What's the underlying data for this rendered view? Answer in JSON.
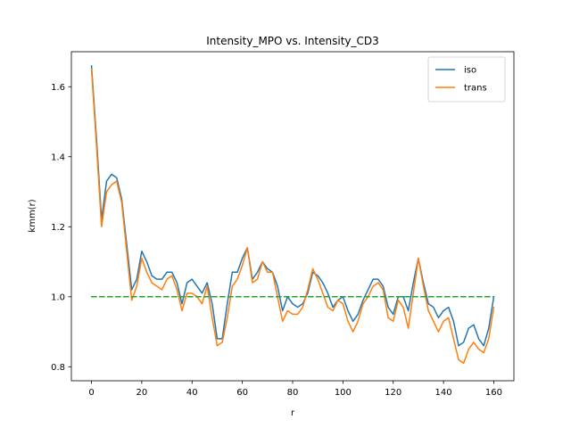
{
  "chart_data": {
    "type": "line",
    "title": "Intensity_MPO vs. Intensity_CD3",
    "xlabel": "r",
    "ylabel": "kmm(r)",
    "xlim": [
      -8,
      168
    ],
    "ylim": [
      0.76,
      1.7
    ],
    "xticks": [
      0,
      20,
      40,
      60,
      80,
      100,
      120,
      140,
      160
    ],
    "yticks": [
      0.8,
      1.0,
      1.2,
      1.4,
      1.6
    ],
    "ytick_labels": [
      "0.8",
      "1.0",
      "1.2",
      "1.4",
      "1.6"
    ],
    "grid": false,
    "legend": "top-right",
    "series": [
      {
        "name": "iso",
        "color": "#1f77b4",
        "style": "solid",
        "x": [
          0,
          2,
          4,
          6,
          8,
          10,
          12,
          14,
          16,
          18,
          20,
          22,
          24,
          26,
          28,
          30,
          32,
          34,
          36,
          38,
          40,
          42,
          44,
          46,
          48,
          50,
          52,
          54,
          56,
          58,
          60,
          62,
          64,
          66,
          68,
          70,
          72,
          74,
          76,
          78,
          80,
          82,
          84,
          86,
          88,
          90,
          92,
          94,
          96,
          98,
          100,
          102,
          104,
          106,
          108,
          110,
          112,
          114,
          116,
          118,
          120,
          122,
          124,
          126,
          128,
          130,
          132,
          134,
          136,
          138,
          140,
          142,
          144,
          146,
          148,
          150,
          152,
          154,
          156,
          158,
          160
        ],
        "y": [
          1.66,
          1.45,
          1.22,
          1.33,
          1.35,
          1.34,
          1.28,
          1.15,
          1.02,
          1.05,
          1.13,
          1.1,
          1.06,
          1.05,
          1.05,
          1.07,
          1.07,
          1.04,
          0.98,
          1.04,
          1.05,
          1.03,
          1.01,
          1.04,
          0.98,
          0.88,
          0.88,
          0.98,
          1.07,
          1.07,
          1.11,
          1.14,
          1.05,
          1.07,
          1.1,
          1.08,
          1.07,
          1.03,
          0.96,
          1.0,
          0.98,
          0.97,
          0.98,
          1.01,
          1.07,
          1.06,
          1.04,
          1.01,
          0.97,
          0.99,
          1.0,
          0.96,
          0.93,
          0.95,
          0.99,
          1.02,
          1.05,
          1.05,
          1.03,
          0.97,
          0.95,
          1.0,
          1.0,
          0.96,
          1.04,
          1.11,
          1.04,
          0.98,
          0.97,
          0.94,
          0.96,
          0.97,
          0.93,
          0.86,
          0.87,
          0.91,
          0.92,
          0.88,
          0.86,
          0.91,
          1.0
        ]
      },
      {
        "name": "trans",
        "color": "#ff7f0e",
        "style": "solid",
        "x": [
          0,
          2,
          4,
          6,
          8,
          10,
          12,
          14,
          16,
          18,
          20,
          22,
          24,
          26,
          28,
          30,
          32,
          34,
          36,
          38,
          40,
          42,
          44,
          46,
          48,
          50,
          52,
          54,
          56,
          58,
          60,
          62,
          64,
          66,
          68,
          70,
          72,
          74,
          76,
          78,
          80,
          82,
          84,
          86,
          88,
          90,
          92,
          94,
          96,
          98,
          100,
          102,
          104,
          106,
          108,
          110,
          112,
          114,
          116,
          118,
          120,
          122,
          124,
          126,
          128,
          130,
          132,
          134,
          136,
          138,
          140,
          142,
          144,
          146,
          148,
          150,
          152,
          154,
          156,
          158,
          160
        ],
        "y": [
          1.65,
          1.43,
          1.2,
          1.3,
          1.32,
          1.33,
          1.27,
          1.13,
          0.99,
          1.03,
          1.11,
          1.07,
          1.04,
          1.03,
          1.02,
          1.05,
          1.06,
          1.02,
          0.96,
          1.01,
          1.01,
          1.0,
          0.98,
          1.03,
          0.94,
          0.86,
          0.87,
          0.94,
          1.03,
          1.05,
          1.09,
          1.14,
          1.04,
          1.05,
          1.1,
          1.07,
          1.07,
          1.0,
          0.93,
          0.96,
          0.95,
          0.95,
          0.97,
          1.02,
          1.08,
          1.05,
          1.01,
          0.97,
          0.96,
          0.99,
          0.98,
          0.93,
          0.9,
          0.93,
          0.98,
          1.0,
          1.03,
          1.04,
          1.02,
          0.94,
          0.93,
          0.99,
          0.97,
          0.91,
          1.01,
          1.11,
          1.03,
          0.96,
          0.93,
          0.9,
          0.93,
          0.94,
          0.88,
          0.82,
          0.81,
          0.85,
          0.87,
          0.85,
          0.84,
          0.88,
          0.97
        ]
      },
      {
        "name": "",
        "color": "#2ca02c",
        "style": "dashed",
        "x": [
          0,
          160
        ],
        "y": [
          1.0,
          1.0
        ]
      }
    ]
  }
}
